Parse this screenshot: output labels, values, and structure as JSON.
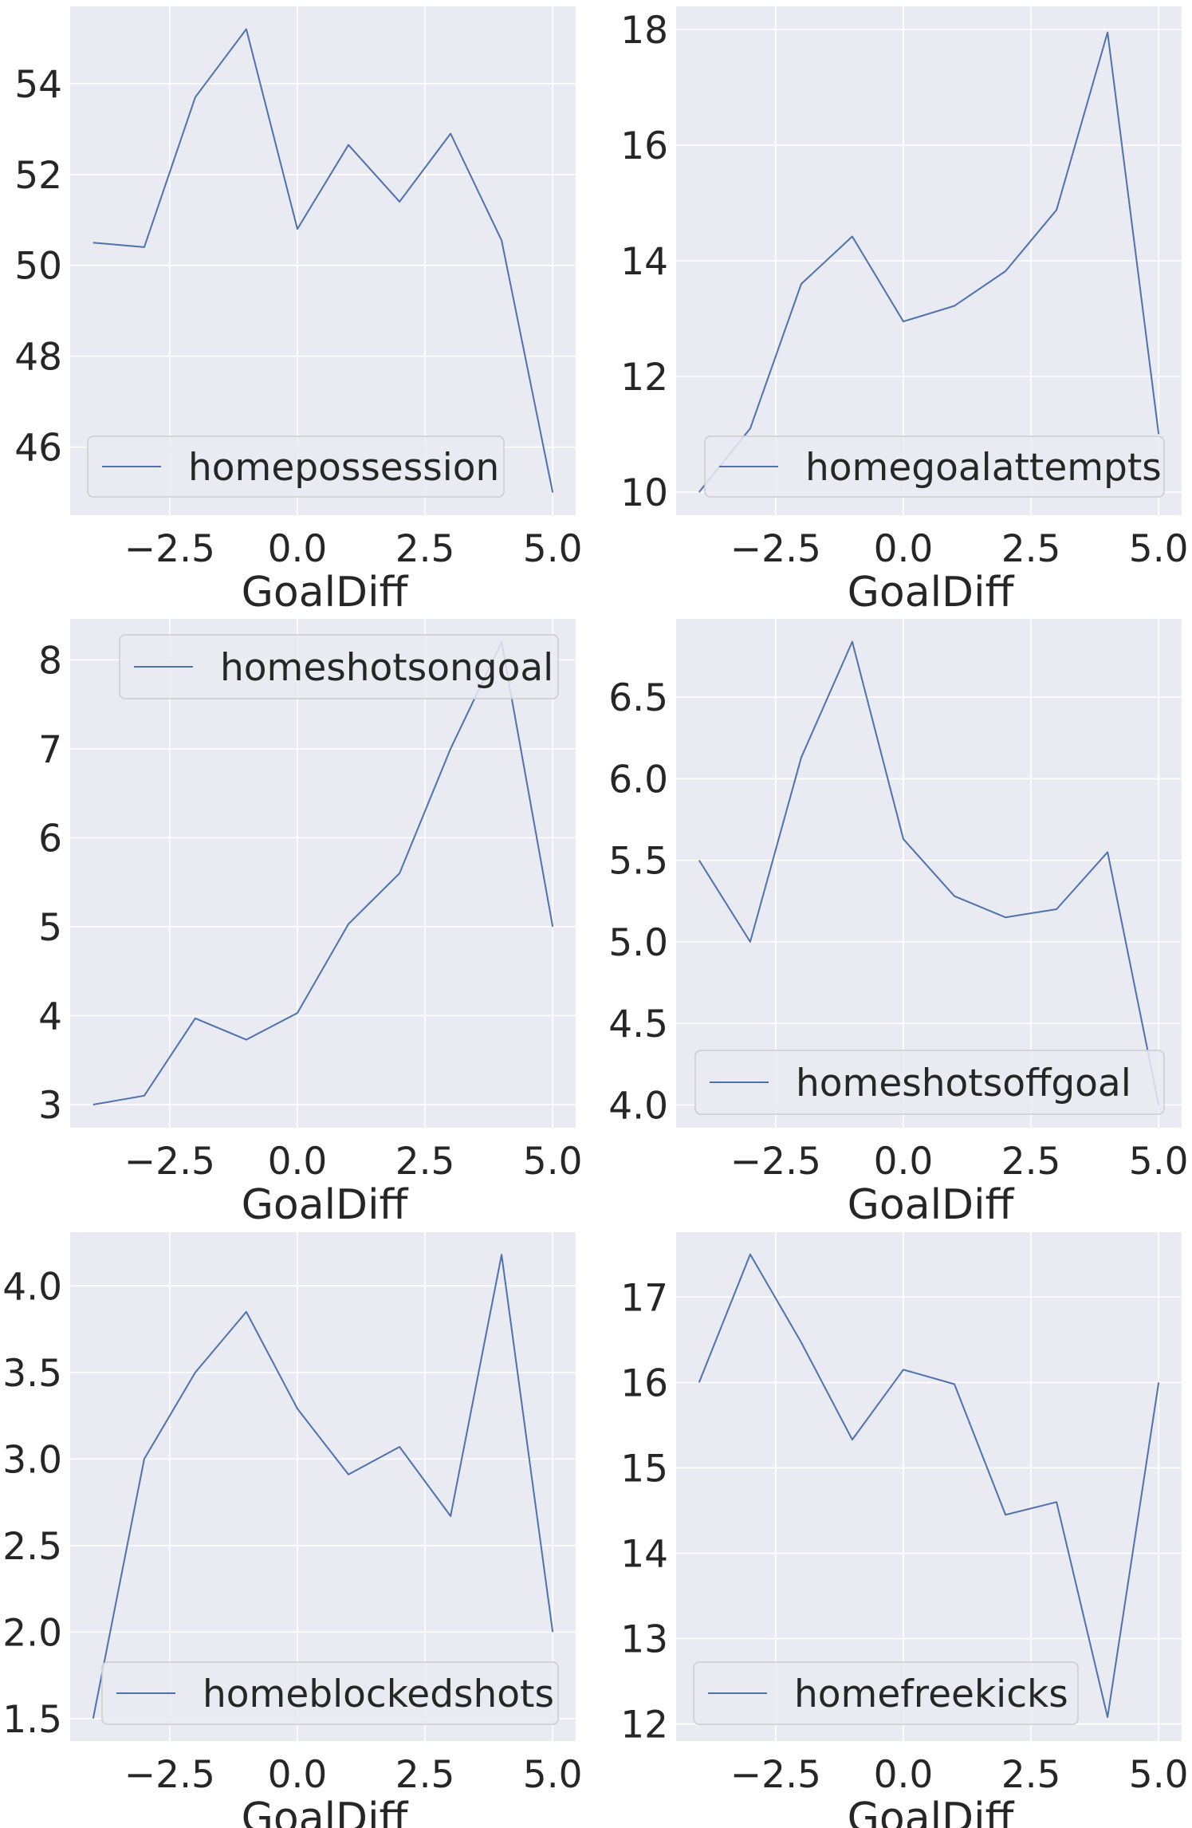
{
  "style": {
    "axes_bg": "#EAEAF2",
    "grid_color": "#FFFFFF",
    "line_color": "#4C72B0",
    "text_color": "#262626",
    "legend_bg": "#EAEAF2",
    "legend_border": "#CCCCCC"
  },
  "chart_data": [
    {
      "type": "line",
      "xlabel": "GoalDiff",
      "x": [
        -4,
        -3,
        -2,
        -1,
        0,
        1,
        2,
        3,
        4,
        5
      ],
      "series": [
        {
          "name": "homepossession",
          "values": [
            50.5,
            50.4,
            53.7,
            55.2,
            50.8,
            52.65,
            51.4,
            52.9,
            50.55,
            45.0
          ]
        }
      ],
      "xticks": [
        "−2.5",
        "0.0",
        "2.5",
        "5.0"
      ],
      "xtick_values": [
        -2.5,
        0,
        2.5,
        5
      ],
      "yticks": [
        "46",
        "48",
        "50",
        "52",
        "54"
      ],
      "ytick_values": [
        46,
        48,
        50,
        52,
        54
      ],
      "xlim": [
        -4.45,
        5.45
      ],
      "ylim": [
        44.5,
        55.7
      ],
      "grid": true,
      "legend": "lower-left"
    },
    {
      "type": "line",
      "xlabel": "GoalDiff",
      "x": [
        -4,
        -3,
        -2,
        -1,
        0,
        1,
        2,
        3,
        4,
        5
      ],
      "series": [
        {
          "name": "homegoalattempts",
          "values": [
            10.0,
            11.1,
            13.6,
            14.42,
            12.95,
            13.22,
            13.82,
            14.88,
            17.95,
            11.0
          ]
        }
      ],
      "xticks": [
        "−2.5",
        "0.0",
        "2.5",
        "5.0"
      ],
      "xtick_values": [
        -2.5,
        0,
        2.5,
        5
      ],
      "yticks": [
        "10",
        "12",
        "14",
        "16",
        "18"
      ],
      "ytick_values": [
        10,
        12,
        14,
        16,
        18
      ],
      "xlim": [
        -4.45,
        5.45
      ],
      "ylim": [
        9.6,
        18.4
      ],
      "grid": true,
      "legend": "lower-right"
    },
    {
      "type": "line",
      "xlabel": "GoalDiff",
      "x": [
        -4,
        -3,
        -2,
        -1,
        0,
        1,
        2,
        3,
        4,
        5
      ],
      "series": [
        {
          "name": "homeshotsongoal",
          "values": [
            3.0,
            3.1,
            3.97,
            3.73,
            4.03,
            5.03,
            5.6,
            7.0,
            8.2,
            5.0
          ]
        }
      ],
      "xticks": [
        "−2.5",
        "0.0",
        "2.5",
        "5.0"
      ],
      "xtick_values": [
        -2.5,
        0,
        2.5,
        5
      ],
      "yticks": [
        "3",
        "4",
        "5",
        "6",
        "7",
        "8"
      ],
      "ytick_values": [
        3,
        4,
        5,
        6,
        7,
        8
      ],
      "xlim": [
        -4.45,
        5.45
      ],
      "ylim": [
        2.74,
        8.46
      ],
      "grid": true,
      "legend": "upper-right"
    },
    {
      "type": "line",
      "xlabel": "GoalDiff",
      "x": [
        -4,
        -3,
        -2,
        -1,
        0,
        1,
        2,
        3,
        4,
        5
      ],
      "series": [
        {
          "name": "homeshotsoffgoal",
          "values": [
            5.5,
            5.0,
            6.13,
            6.84,
            5.63,
            5.28,
            5.15,
            5.2,
            5.55,
            4.0
          ]
        }
      ],
      "xticks": [
        "−2.5",
        "0.0",
        "2.5",
        "5.0"
      ],
      "xtick_values": [
        -2.5,
        0,
        2.5,
        5
      ],
      "yticks": [
        "4.0",
        "4.5",
        "5.0",
        "5.5",
        "6.0",
        "6.5"
      ],
      "ytick_values": [
        4.0,
        4.5,
        5.0,
        5.5,
        6.0,
        6.5
      ],
      "xlim": [
        -4.45,
        5.45
      ],
      "ylim": [
        3.86,
        6.98
      ],
      "grid": true,
      "legend": "lower-left"
    },
    {
      "type": "line",
      "xlabel": "GoalDiff",
      "x": [
        -4,
        -3,
        -2,
        -1,
        0,
        1,
        2,
        3,
        4,
        5
      ],
      "series": [
        {
          "name": "homeblockedshots",
          "values": [
            1.5,
            3.0,
            3.5,
            3.85,
            3.29,
            2.91,
            3.07,
            2.67,
            4.18,
            2.0
          ]
        }
      ],
      "xticks": [
        "−2.5",
        "0.0",
        "2.5",
        "5.0"
      ],
      "xtick_values": [
        -2.5,
        0,
        2.5,
        5
      ],
      "yticks": [
        "1.5",
        "2.0",
        "2.5",
        "3.0",
        "3.5",
        "4.0"
      ],
      "ytick_values": [
        1.5,
        2.0,
        2.5,
        3.0,
        3.5,
        4.0
      ],
      "xlim": [
        -4.45,
        5.45
      ],
      "ylim": [
        1.37,
        4.31
      ],
      "grid": true,
      "legend": "lower-right"
    },
    {
      "type": "line",
      "xlabel": "GoalDiff",
      "x": [
        -4,
        -3,
        -2,
        -1,
        0,
        1,
        2,
        3,
        4,
        5
      ],
      "series": [
        {
          "name": "homefreekicks",
          "values": [
            16.0,
            17.5,
            16.47,
            15.33,
            16.15,
            15.98,
            14.45,
            14.6,
            12.08,
            16.0
          ]
        }
      ],
      "xticks": [
        "−2.5",
        "0.0",
        "2.5",
        "5.0"
      ],
      "xtick_values": [
        -2.5,
        0,
        2.5,
        5
      ],
      "yticks": [
        "12",
        "13",
        "14",
        "15",
        "16",
        "17"
      ],
      "ytick_values": [
        12,
        13,
        14,
        15,
        16,
        17
      ],
      "xlim": [
        -4.45,
        5.45
      ],
      "ylim": [
        11.8,
        17.76
      ],
      "grid": true,
      "legend": "lower-left"
    }
  ]
}
